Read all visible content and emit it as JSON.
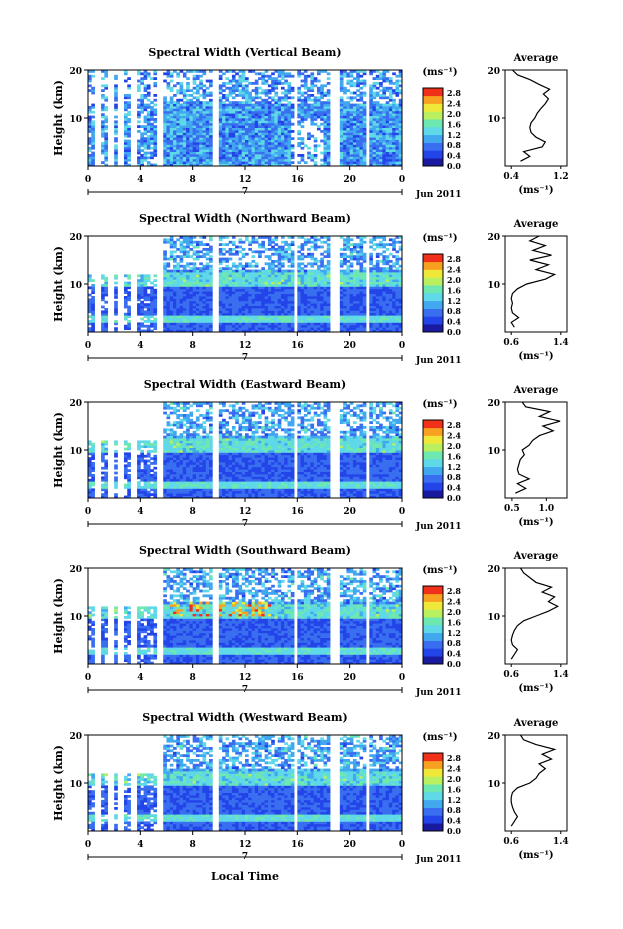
{
  "figure": {
    "xlabel": "Local Time",
    "cbar_unit": "(ms⁻¹)",
    "avg_title": "Average",
    "avg_unit": "(ms⁻¹)",
    "ylabel": "Height (km)",
    "date_label": "Jun 2011",
    "day_label": "7",
    "colors": [
      "#1a1aa0",
      "#2244e8",
      "#3a6ef0",
      "#41a8f0",
      "#5fd8e8",
      "#6ee8b0",
      "#b8f060",
      "#f0e838",
      "#f8a020",
      "#f03018"
    ]
  },
  "chart_data": [
    {
      "type": "heatmap",
      "title": "Spectral Width (Vertical Beam)",
      "x_ticks": [
        "0",
        "4",
        "8",
        "12",
        "16",
        "20",
        "0"
      ],
      "y_ticks": [
        "10",
        "20"
      ],
      "ylim": [
        0,
        20
      ],
      "colorbar_ticks": [
        "0.0",
        "0.4",
        "0.8",
        "1.2",
        "1.6",
        "2.0",
        "2.4",
        "2.8"
      ],
      "colorbar_range": [
        0.0,
        3.0
      ],
      "average": {
        "x_ticks": [
          "0.4",
          "1.2"
        ],
        "xlim": [
          0.3,
          1.3
        ],
        "y_ticks": [
          "10",
          "20"
        ],
        "profile": [
          [
            0.55,
            1
          ],
          [
            0.7,
            2
          ],
          [
            0.6,
            3
          ],
          [
            0.9,
            4
          ],
          [
            0.95,
            5
          ],
          [
            0.8,
            6
          ],
          [
            0.72,
            7
          ],
          [
            0.7,
            8
          ],
          [
            0.72,
            9
          ],
          [
            0.78,
            10
          ],
          [
            0.82,
            11
          ],
          [
            0.88,
            12
          ],
          [
            0.95,
            13
          ],
          [
            1.0,
            14
          ],
          [
            0.92,
            15
          ],
          [
            1.02,
            16
          ],
          [
            0.85,
            17
          ],
          [
            0.7,
            18
          ],
          [
            0.5,
            19
          ],
          [
            0.42,
            20
          ]
        ]
      }
    },
    {
      "type": "heatmap",
      "title": "Spectral Width (Northward Beam)",
      "x_ticks": [
        "0",
        "4",
        "8",
        "12",
        "16",
        "20",
        "0"
      ],
      "y_ticks": [
        "10",
        "20"
      ],
      "ylim": [
        0,
        20
      ],
      "colorbar_ticks": [
        "0.0",
        "0.4",
        "0.8",
        "1.2",
        "1.6",
        "2.0",
        "2.4",
        "2.8"
      ],
      "colorbar_range": [
        0.0,
        3.0
      ],
      "average": {
        "x_ticks": [
          "0.6",
          "1.4"
        ],
        "xlim": [
          0.5,
          1.5
        ],
        "y_ticks": [
          "10",
          "20"
        ],
        "profile": [
          [
            0.65,
            1
          ],
          [
            0.6,
            2
          ],
          [
            0.72,
            3
          ],
          [
            0.62,
            4
          ],
          [
            0.6,
            5
          ],
          [
            0.62,
            6
          ],
          [
            0.6,
            7
          ],
          [
            0.62,
            8
          ],
          [
            0.7,
            9
          ],
          [
            0.85,
            10
          ],
          [
            1.15,
            11
          ],
          [
            1.3,
            12
          ],
          [
            1.0,
            13
          ],
          [
            1.2,
            14
          ],
          [
            0.9,
            15
          ],
          [
            1.25,
            16
          ],
          [
            0.95,
            17
          ],
          [
            1.15,
            18
          ],
          [
            0.9,
            19
          ],
          [
            1.05,
            20
          ]
        ]
      }
    },
    {
      "type": "heatmap",
      "title": "Spectral Width (Eastward Beam)",
      "x_ticks": [
        "0",
        "4",
        "8",
        "12",
        "16",
        "20",
        "0"
      ],
      "y_ticks": [
        "10",
        "20"
      ],
      "ylim": [
        0,
        20
      ],
      "colorbar_ticks": [
        "0.0",
        "0.4",
        "0.8",
        "1.2",
        "1.6",
        "2.0",
        "2.4",
        "2.8"
      ],
      "colorbar_range": [
        0.0,
        3.0
      ],
      "average": {
        "x_ticks": [
          "0.5",
          "1.0"
        ],
        "xlim": [
          0.4,
          1.3
        ],
        "y_ticks": [
          "10",
          "20"
        ],
        "profile": [
          [
            0.55,
            1
          ],
          [
            0.7,
            2
          ],
          [
            0.58,
            3
          ],
          [
            0.75,
            4
          ],
          [
            0.6,
            5
          ],
          [
            0.58,
            6
          ],
          [
            0.6,
            7
          ],
          [
            0.62,
            8
          ],
          [
            0.68,
            9
          ],
          [
            0.65,
            10
          ],
          [
            0.75,
            11
          ],
          [
            0.8,
            12
          ],
          [
            0.9,
            13
          ],
          [
            1.1,
            14
          ],
          [
            0.95,
            15
          ],
          [
            1.2,
            16
          ],
          [
            0.9,
            17
          ],
          [
            1.05,
            18
          ],
          [
            0.7,
            19
          ],
          [
            0.65,
            20
          ]
        ]
      }
    },
    {
      "type": "heatmap",
      "title": "Spectral Width (Southward Beam)",
      "x_ticks": [
        "0",
        "4",
        "8",
        "12",
        "16",
        "20",
        "0"
      ],
      "y_ticks": [
        "10",
        "20"
      ],
      "ylim": [
        0,
        20
      ],
      "colorbar_ticks": [
        "0.0",
        "0.4",
        "0.8",
        "1.2",
        "1.6",
        "2.0",
        "2.4",
        "2.8"
      ],
      "colorbar_range": [
        0.0,
        3.0
      ],
      "average": {
        "x_ticks": [
          "0.6",
          "1.4"
        ],
        "xlim": [
          0.5,
          1.5
        ],
        "y_ticks": [
          "10",
          "20"
        ],
        "profile": [
          [
            0.6,
            1
          ],
          [
            0.65,
            2
          ],
          [
            0.7,
            3
          ],
          [
            0.62,
            4
          ],
          [
            0.6,
            5
          ],
          [
            0.62,
            6
          ],
          [
            0.65,
            7
          ],
          [
            0.7,
            8
          ],
          [
            0.8,
            9
          ],
          [
            1.0,
            10
          ],
          [
            1.2,
            11
          ],
          [
            1.35,
            12
          ],
          [
            1.2,
            13
          ],
          [
            1.3,
            14
          ],
          [
            1.1,
            15
          ],
          [
            1.25,
            16
          ],
          [
            1.0,
            17
          ],
          [
            0.9,
            18
          ],
          [
            0.8,
            19
          ],
          [
            0.75,
            20
          ]
        ]
      }
    },
    {
      "type": "heatmap",
      "title": "Spectral Width (Westward Beam)",
      "x_ticks": [
        "0",
        "4",
        "8",
        "12",
        "16",
        "20",
        "0"
      ],
      "y_ticks": [
        "10",
        "20"
      ],
      "ylim": [
        0,
        20
      ],
      "colorbar_ticks": [
        "0.0",
        "0.4",
        "0.8",
        "1.2",
        "1.6",
        "2.0",
        "2.4",
        "2.8"
      ],
      "colorbar_range": [
        0.0,
        3.0
      ],
      "average": {
        "x_ticks": [
          "0.6",
          "1.4"
        ],
        "xlim": [
          0.5,
          1.5
        ],
        "y_ticks": [
          "10",
          "20"
        ],
        "profile": [
          [
            0.6,
            1
          ],
          [
            0.65,
            2
          ],
          [
            0.7,
            3
          ],
          [
            0.65,
            4
          ],
          [
            0.62,
            5
          ],
          [
            0.6,
            6
          ],
          [
            0.6,
            7
          ],
          [
            0.62,
            8
          ],
          [
            0.7,
            9
          ],
          [
            0.9,
            10
          ],
          [
            1.0,
            11
          ],
          [
            1.05,
            12
          ],
          [
            1.15,
            13
          ],
          [
            1.05,
            14
          ],
          [
            1.25,
            15
          ],
          [
            1.1,
            16
          ],
          [
            1.3,
            17
          ],
          [
            1.0,
            18
          ],
          [
            0.8,
            19
          ],
          [
            0.75,
            20
          ]
        ]
      }
    }
  ]
}
